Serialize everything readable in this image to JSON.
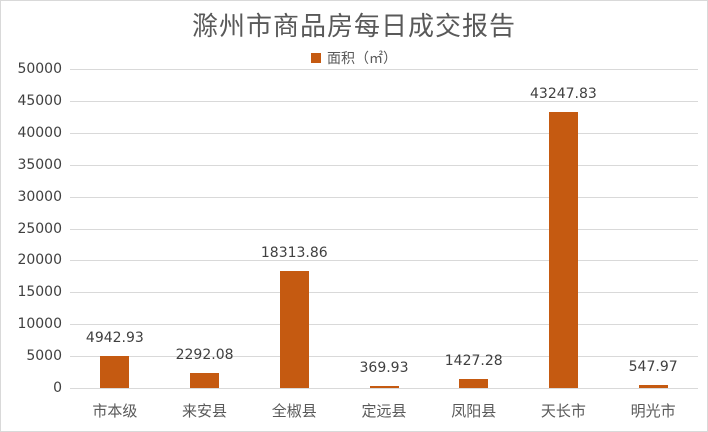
{
  "chart_data": {
    "type": "bar",
    "title": "滁州市商品房每日成交报告",
    "legend": [
      "面积（㎡）"
    ],
    "legend_position": "top",
    "xlabel": "",
    "ylabel": "",
    "ylim": [
      0,
      50000
    ],
    "yticks": [
      "0",
      "5000",
      "10000",
      "15000",
      "20000",
      "25000",
      "30000",
      "35000",
      "40000",
      "45000",
      "50000"
    ],
    "grid": true,
    "categories": [
      "市本级",
      "来安县",
      "全椒县",
      "定远县",
      "凤阳县",
      "天长市",
      "明光市"
    ],
    "series": [
      {
        "name": "面积（㎡）",
        "color": "#c55a11",
        "values": [
          4942.93,
          2292.08,
          18313.86,
          369.93,
          1427.28,
          43247.83,
          547.97
        ],
        "labels": [
          "4942.93",
          "2292.08",
          "18313.86",
          "369.93",
          "1427.28",
          "43247.83",
          "547.97"
        ]
      }
    ]
  }
}
